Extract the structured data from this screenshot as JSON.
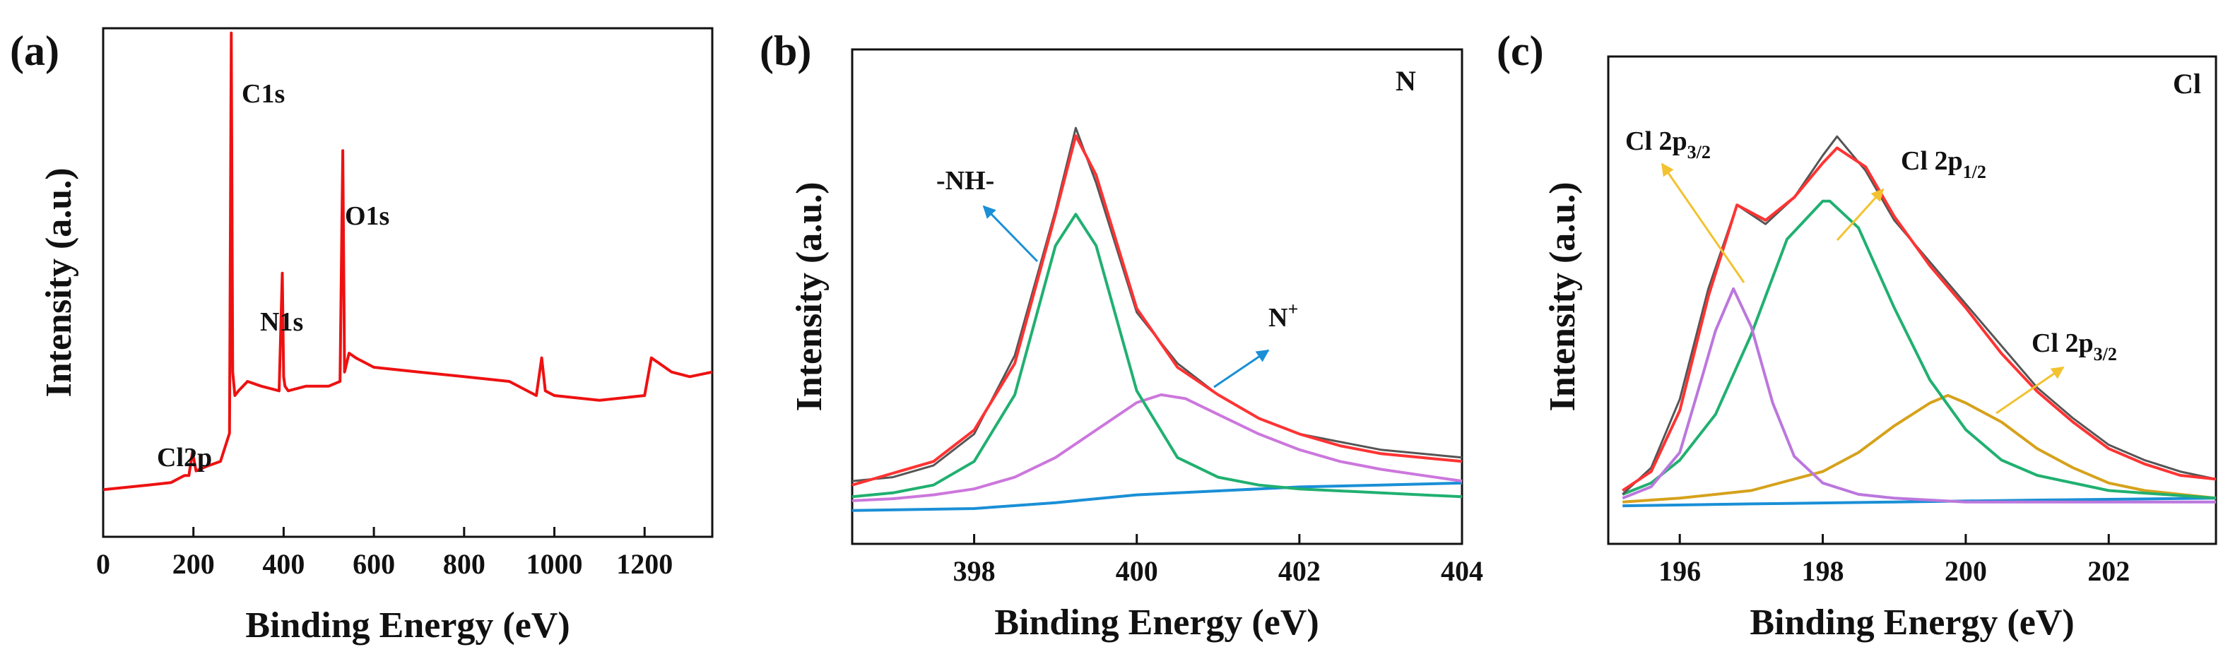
{
  "chart_data": [
    {
      "type": "line",
      "panel_label": "(a)",
      "title": "",
      "xlabel": "Binding Energy (eV)",
      "ylabel": "Intensity (a.u.)",
      "xlim": [
        0,
        1350
      ],
      "ylim": [
        0,
        100
      ],
      "xticks": [
        0,
        200,
        400,
        600,
        800,
        1000,
        1200
      ],
      "xtick_labels": [
        "0",
        "200",
        "400",
        "600",
        "800",
        "1000",
        "1200"
      ],
      "yticks_visible": false,
      "series": [
        {
          "name": "Survey",
          "color": "#ee1111",
          "x": [
            0,
            50,
            100,
            150,
            180,
            190,
            198,
            206,
            230,
            260,
            280,
            284,
            287,
            292,
            300,
            320,
            350,
            390,
            397,
            400,
            403,
            410,
            450,
            500,
            525,
            531,
            535,
            545,
            560,
            600,
            700,
            800,
            900,
            960,
            972,
            980,
            1000,
            1100,
            1200,
            1215,
            1230,
            1260,
            1300,
            1350
          ],
          "y": [
            2,
            2.5,
            3,
            3.5,
            5,
            5,
            10,
            6,
            7,
            8,
            14,
            99,
            27,
            22,
            23,
            25,
            24,
            23,
            48,
            26,
            24,
            23,
            24,
            24,
            25,
            74,
            27,
            31,
            30,
            28,
            27,
            26,
            25,
            22,
            30,
            23,
            22,
            21,
            22,
            30,
            29,
            27,
            26,
            27
          ]
        }
      ],
      "annotations": [
        {
          "text": "C1s",
          "x": 284,
          "y": 99
        },
        {
          "text": "O1s",
          "x": 531,
          "y": 74
        },
        {
          "text": "N1s",
          "x": 400,
          "y": 48
        },
        {
          "text": "Cl2p",
          "x": 198,
          "y": 10
        }
      ]
    },
    {
      "type": "line",
      "panel_label": "(b)",
      "element_label": "N",
      "title": "",
      "xlabel": "Binding Energy (eV)",
      "ylabel": "Intensity (a.u.)",
      "xlim": [
        396.5,
        404
      ],
      "ylim": [
        0,
        100
      ],
      "xticks": [
        398,
        400,
        402,
        404
      ],
      "xtick_labels": [
        "398",
        "400",
        "402",
        "404"
      ],
      "yticks_visible": false,
      "series": [
        {
          "name": "Raw",
          "color": "#555555",
          "x": [
            396.5,
            397,
            397.5,
            398,
            398.5,
            399,
            399.25,
            399.5,
            400,
            400.5,
            401,
            401.5,
            402,
            402.5,
            403,
            403.5,
            404
          ],
          "y": [
            8,
            9,
            12,
            20,
            40,
            77,
            98,
            84,
            51,
            38,
            30,
            24,
            20,
            18,
            16,
            15,
            14
          ]
        },
        {
          "name": "Fit envelope",
          "color": "#ff3333",
          "x": [
            396.5,
            397,
            397.5,
            398,
            398.5,
            399,
            399.25,
            399.5,
            400,
            400.5,
            401,
            401.5,
            402,
            402.5,
            403,
            403.5,
            404
          ],
          "y": [
            7,
            10,
            13,
            21,
            38,
            76,
            96,
            86,
            52,
            37,
            30,
            24,
            20,
            17,
            15,
            14,
            13
          ]
        },
        {
          "name": "-NH-",
          "color": "#20b070",
          "x": [
            396.5,
            397,
            397.5,
            398,
            398.5,
            399,
            399.25,
            399.5,
            400,
            400.5,
            401,
            401.5,
            402,
            403,
            404
          ],
          "y": [
            4,
            5,
            7,
            13,
            30,
            68,
            76,
            68,
            31,
            14,
            9,
            7,
            6,
            5,
            4
          ]
        },
        {
          "name": "N+",
          "color": "#cc77dd",
          "x": [
            396.5,
            397,
            397.5,
            398,
            398.5,
            399,
            399.5,
            400,
            400.3,
            400.6,
            401,
            401.5,
            402,
            402.5,
            403,
            403.5,
            404
          ],
          "y": [
            3,
            3.5,
            4.5,
            6,
            9,
            14,
            21,
            28,
            30,
            29,
            25,
            20,
            16,
            13,
            11,
            9.5,
            8
          ]
        },
        {
          "name": "Background",
          "color": "#1a8fd6",
          "x": [
            396.5,
            398,
            399,
            400,
            401,
            402,
            403,
            404
          ],
          "y": [
            0.5,
            1,
            2.5,
            4.5,
            5.5,
            6.5,
            7,
            7.5
          ]
        }
      ],
      "annotations": [
        {
          "text": "-NH-",
          "target": "-NH- peak"
        },
        {
          "text": "N",
          "sup": "+",
          "target": "N+ peak"
        }
      ]
    },
    {
      "type": "line",
      "panel_label": "(c)",
      "element_label": "Cl",
      "title": "",
      "xlabel": "Binding Energy (eV)",
      "ylabel": "Intensity (a.u.)",
      "xlim": [
        195,
        203.5
      ],
      "ylim": [
        0,
        100
      ],
      "xticks": [
        196,
        198,
        200,
        202
      ],
      "xtick_labels": [
        "196",
        "198",
        "200",
        "202"
      ],
      "yticks_visible": false,
      "series": [
        {
          "name": "Raw",
          "color": "#555555",
          "x": [
            195.2,
            195.6,
            196,
            196.4,
            196.8,
            197.2,
            197.6,
            198,
            198.2,
            198.6,
            199,
            199.5,
            200,
            200.5,
            201,
            201.5,
            202,
            202.5,
            203,
            203.5
          ],
          "y": [
            3,
            10,
            28,
            57,
            79,
            74,
            81,
            92,
            97,
            88,
            75,
            64,
            53,
            42,
            31,
            23,
            16,
            12,
            9,
            7
          ]
        },
        {
          "name": "Fit envelope",
          "color": "#ff3333",
          "x": [
            195.2,
            195.6,
            196,
            196.4,
            196.8,
            197.2,
            197.6,
            198,
            198.2,
            198.6,
            199,
            199.5,
            200,
            200.5,
            201,
            201.5,
            202,
            202.5,
            203,
            203.5
          ],
          "y": [
            4,
            9,
            25,
            55,
            79,
            75,
            81,
            90,
            94,
            89,
            76,
            63,
            52,
            40,
            30,
            22,
            15,
            11,
            8,
            7
          ]
        },
        {
          "name": "Cl 2p3/2 (1)",
          "color": "#bb77dd",
          "x": [
            195.2,
            195.6,
            196,
            196.3,
            196.5,
            196.75,
            197,
            197.3,
            197.6,
            198,
            198.5,
            199,
            200,
            201,
            203.5
          ],
          "y": [
            2,
            5,
            14,
            33,
            46,
            57,
            47,
            27,
            13,
            6,
            3,
            2,
            1,
            1,
            1
          ]
        },
        {
          "name": "Cl 2p1/2",
          "color": "#20b070",
          "x": [
            195.2,
            195.6,
            196,
            196.5,
            197,
            197.5,
            198,
            198.1,
            198.5,
            199,
            199.5,
            200,
            200.5,
            201,
            202,
            203.5
          ],
          "y": [
            3,
            6,
            12,
            24,
            45,
            70,
            80,
            80,
            73,
            52,
            33,
            20,
            12,
            8,
            4,
            2
          ]
        },
        {
          "name": "Cl 2p3/2 (2)",
          "color": "#d6a21b",
          "x": [
            195.2,
            196,
            197,
            198,
            198.5,
            199,
            199.5,
            199.75,
            200,
            200.5,
            201,
            201.5,
            202,
            202.5,
            203,
            203.5
          ],
          "y": [
            1,
            2,
            4,
            9,
            14,
            21,
            27,
            29,
            27,
            22,
            15,
            10,
            6,
            4,
            3,
            2
          ]
        },
        {
          "name": "Background",
          "color": "#1a8fd6",
          "x": [
            195.2,
            197,
            199,
            201,
            203.5
          ],
          "y": [
            0,
            0.5,
            1,
            1.5,
            2
          ]
        }
      ],
      "annotations": [
        {
          "text": "Cl 2p",
          "sub": "3/2",
          "target": "Cl 2p3/2 (1) peak"
        },
        {
          "text": "Cl 2p",
          "sub": "1/2",
          "target": "Cl 2p1/2 peak"
        },
        {
          "text": "Cl 2p",
          "sub": "3/2",
          "target": "Cl 2p3/2 (2) peak"
        }
      ]
    }
  ]
}
